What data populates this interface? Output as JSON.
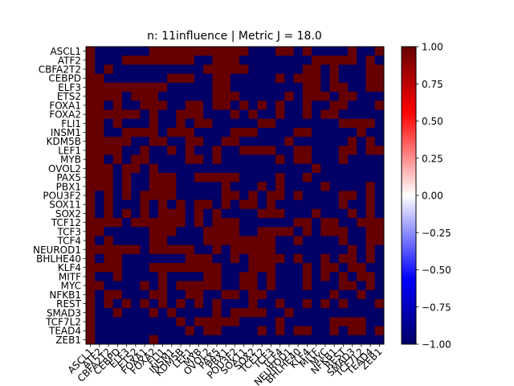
{
  "chart_data": {
    "type": "heatmap",
    "title": "n: 11influence | Metric J = 18.0",
    "xlabel": "",
    "ylabel": "",
    "labels": [
      "ASCL1",
      "ATF2",
      "CBFA2T2",
      "CEBPD",
      "ELF3",
      "ETS2",
      "FOXA1",
      "FOXA2",
      "FLI1",
      "INSM1",
      "KDM5B",
      "LEF1",
      "MYB",
      "OVOL2",
      "PAX5",
      "PBX1",
      "POU3F2",
      "SOX11",
      "SOX2",
      "TCF12",
      "TCF3",
      "TCF4",
      "NEUROD1",
      "BHLHE40",
      "KLF4",
      "MITF",
      "MYC",
      "NFKB1",
      "REST",
      "SMAD3",
      "TCF7L2",
      "TEAD4",
      "ZEB1"
    ],
    "colorbar": {
      "range": [
        -1.0,
        1.0
      ],
      "ticks": [
        "-1.00",
        "-0.75",
        "-0.50",
        "-0.25",
        "0.00",
        "0.25",
        "0.50",
        "0.75",
        "1.00"
      ],
      "colors": {
        "low": "#000066",
        "mid": "#ffffff",
        "high": "#660000"
      }
    },
    "grid_rows": [
      "100000011111111111000110100001001",
      "100011111111001110000000011111010",
      "101000000000011111000000110100011",
      "110000000111001100000101110100011",
      "111111111000001100000000110110011",
      "111101110000001110000010111011000",
      "110100111001101101010100100110001",
      "111111010011100010100100101100000",
      "110100010010110000011000000011110",
      "110011110111000011100001100000100",
      "111110011001100110000010000001010",
      "111100100101001001111001100011011",
      "110101100001101000000101100010000",
      "111011010000000000000000010000000",
      "111010011100111110000100100000000",
      "111010011100000100010100001000010",
      "101010111100000110101101000011010",
      "101000101010110101101000000010010",
      "101010101110101000011100010001010",
      "111101111110101110000001101100111",
      "110000011100011110011110101110011",
      "101000011000011111111001000010011",
      "111111011111001011111000000001010",
      "101100000001110010111101001011010",
      "111100011111111000111000101101100",
      "100100001000011001101000101010110",
      "110000101011111001101000100011010",
      "101100011001100110110000000100100",
      "101010101010101000100100101010001",
      "100100010100001011110010000000000",
      "100000000010111110000100000111100",
      "100000000001011000010101100101101",
      "100000010000000000000000000000000"
    ]
  }
}
